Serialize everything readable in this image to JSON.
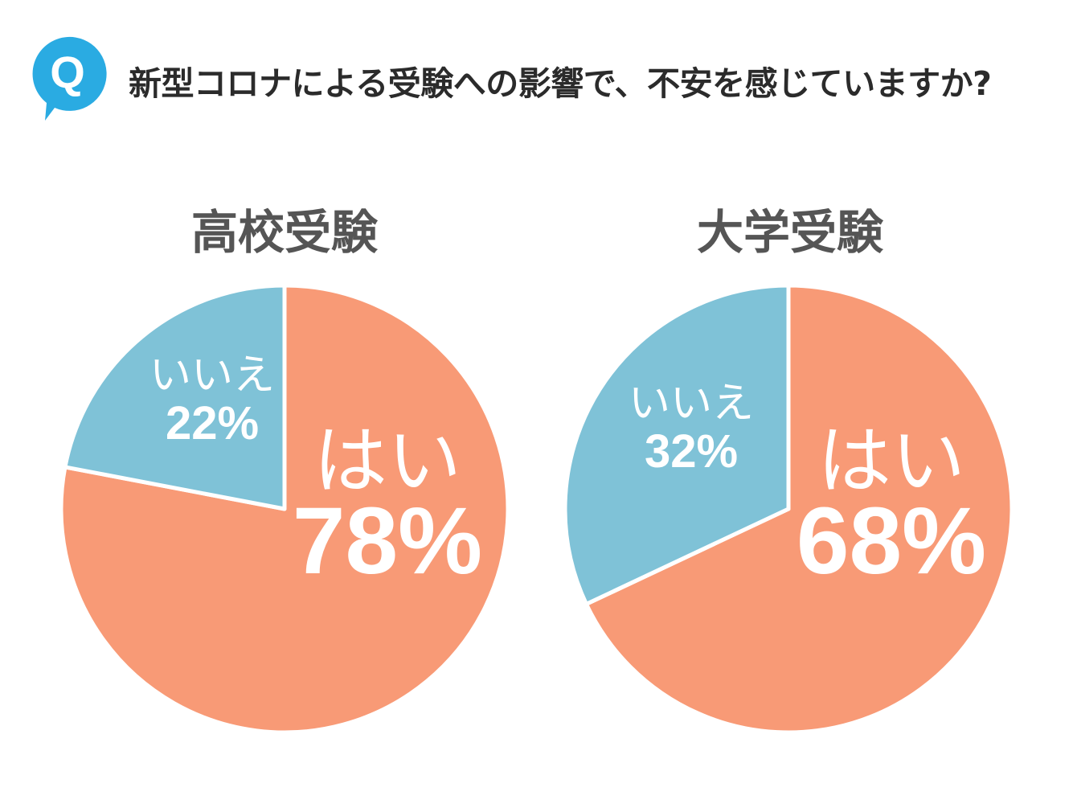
{
  "question": {
    "badge_letter": "Q",
    "text": "新型コロナによる受験への影響で、不安を感じていますか?"
  },
  "colors": {
    "yes": "#F89A76",
    "no": "#7FC2D7",
    "badge": "#2AABE2",
    "title_text": "#555555",
    "label_text": "#FFFFFF"
  },
  "chart_data": [
    {
      "type": "pie",
      "title": "高校受験",
      "slices": [
        {
          "label": "はい",
          "value": 78,
          "value_label": "78%",
          "color": "#F89A76"
        },
        {
          "label": "いいえ",
          "value": 22,
          "value_label": "22%",
          "color": "#7FC2D7"
        }
      ]
    },
    {
      "type": "pie",
      "title": "大学受験",
      "slices": [
        {
          "label": "はい",
          "value": 68,
          "value_label": "68%",
          "color": "#F89A76"
        },
        {
          "label": "いいえ",
          "value": 32,
          "value_label": "32%",
          "color": "#7FC2D7"
        }
      ]
    }
  ]
}
